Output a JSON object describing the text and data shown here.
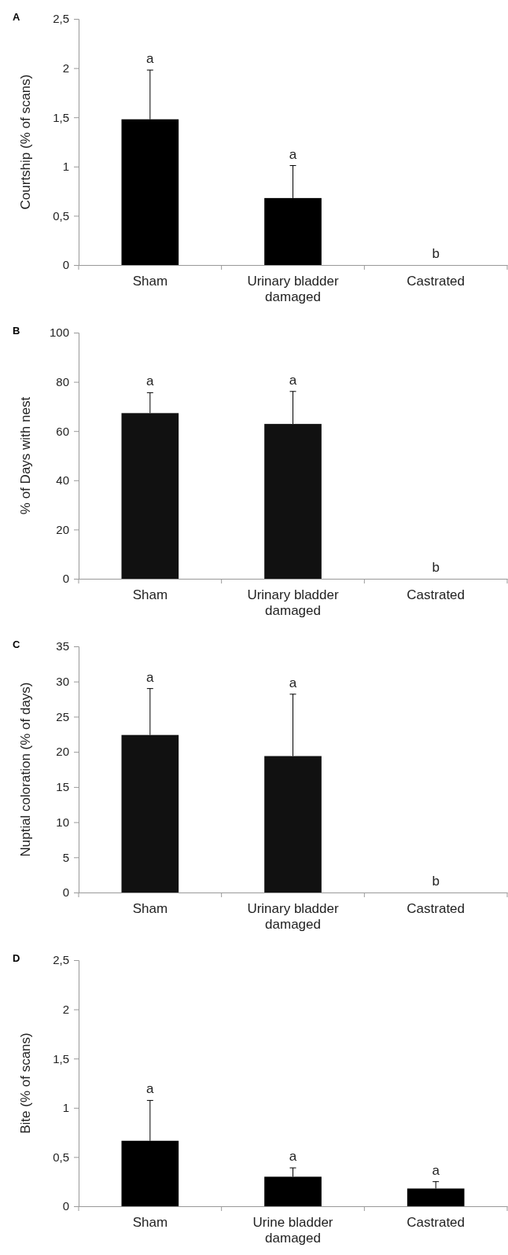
{
  "chart_data": [
    {
      "type": "bar",
      "title": "A",
      "ylabel": "Courtship (% of scans)",
      "categories": [
        "Sham",
        "Urinary bladder damaged",
        "Castrated"
      ],
      "series": [
        {
          "color": "#000000",
          "values": [
            1.48,
            0.68,
            0
          ],
          "errors": [
            0.5,
            0.33,
            null
          ]
        }
      ],
      "ylim": [
        0,
        2.5
      ],
      "yticks": [
        0,
        {
          "value": 0.5,
          "label": "0,5"
        },
        1,
        {
          "value": 1.5,
          "label": "1,5"
        },
        2,
        {
          "value": 2.5,
          "label": "2,5"
        }
      ],
      "annotations": [
        {
          "text": "a",
          "x": "Sham",
          "y": 1.98
        },
        {
          "text": "a",
          "x": "Urinary bladder damaged",
          "y": 1.01
        },
        {
          "text": "b",
          "x": "Castrated",
          "y": 0
        }
      ]
    },
    {
      "type": "bar",
      "title": "B",
      "ylabel": "%  of  Days with nest",
      "categories": [
        "Sham",
        "Urinary bladder damaged",
        "Castrated"
      ],
      "series": [
        {
          "color": "#111111",
          "values": [
            67.3,
            62.9,
            0
          ],
          "errors": [
            8.3,
            13.2,
            null
          ]
        }
      ],
      "ylim": [
        0,
        100
      ],
      "yticks": [
        0,
        20,
        40,
        60,
        80,
        100
      ],
      "annotations": [
        {
          "text": "a",
          "x": "Sham",
          "y": 75.6
        },
        {
          "text": "a",
          "x": "Urinary bladder damaged",
          "y": 76.1
        },
        {
          "text": "b",
          "x": "Castrated",
          "y": 0
        }
      ]
    },
    {
      "type": "bar",
      "title": "C",
      "ylabel": "Nuptial coloration (% of days)",
      "categories": [
        "Sham",
        "Urinary bladder damaged",
        "Castrated"
      ],
      "series": [
        {
          "color": "#111111",
          "values": [
            22.4,
            19.4,
            0
          ],
          "errors": [
            6.6,
            8.8,
            null
          ]
        }
      ],
      "ylim": [
        0,
        35
      ],
      "yticks": [
        0,
        5,
        10,
        15,
        20,
        25,
        30,
        35
      ],
      "annotations": [
        {
          "text": "a",
          "x": "Sham",
          "y": 29
        },
        {
          "text": "a",
          "x": "Urinary bladder damaged",
          "y": 28.2
        },
        {
          "text": "b",
          "x": "Castrated",
          "y": 0
        }
      ]
    },
    {
      "type": "bar",
      "title": "D",
      "ylabel": "Bite (% of scans)",
      "categories": [
        "Sham",
        "Urine bladder damaged",
        "Castrated"
      ],
      "series": [
        {
          "color": "#000000",
          "values": [
            0.665,
            0.3,
            0.18
          ],
          "errors": [
            0.41,
            0.09,
            0.07
          ]
        }
      ],
      "ylim": [
        0,
        2.5
      ],
      "yticks": [
        0,
        {
          "value": 0.5,
          "label": "0,5"
        },
        1,
        {
          "value": 1.5,
          "label": "1,5"
        },
        2,
        {
          "value": 2.5,
          "label": "2,5"
        }
      ],
      "annotations": [
        {
          "text": "a",
          "x": "Sham",
          "y": 1.076
        },
        {
          "text": "a",
          "x": "Urine bladder damaged",
          "y": 0.39
        },
        {
          "text": "a",
          "x": "Castrated",
          "y": 0.25
        }
      ]
    }
  ]
}
